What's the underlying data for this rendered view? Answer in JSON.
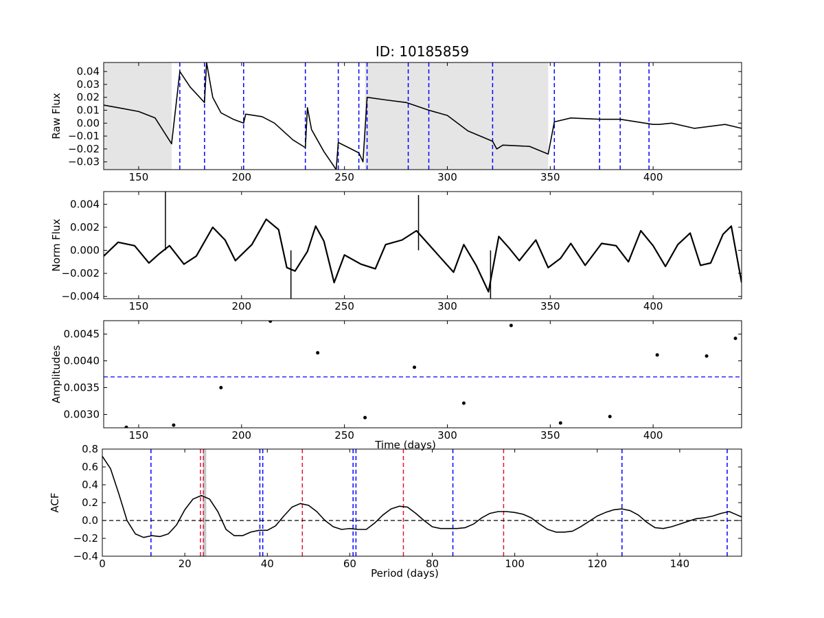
{
  "figure_title": "ID: 10185859",
  "chart_data": [
    {
      "type": "line",
      "ylabel": "Raw Flux",
      "xlabel": "",
      "xlim": [
        133,
        443
      ],
      "ylim": [
        -0.036,
        0.047
      ],
      "xticks": [
        150,
        200,
        250,
        300,
        350,
        400
      ],
      "yticks": [
        -0.03,
        -0.02,
        -0.01,
        0.0,
        0.01,
        0.02,
        0.03,
        0.04
      ],
      "ytick_labels": [
        "−0.03",
        "−0.02",
        "−0.01",
        "0.00",
        "0.01",
        "0.02",
        "0.03",
        "0.04"
      ],
      "grid": false,
      "shaded_regions": [
        [
          133,
          166
        ],
        [
          260,
          349
        ]
      ],
      "vlines": [
        170,
        182,
        201,
        231,
        247,
        257,
        261,
        281,
        291,
        322,
        352,
        374,
        384,
        398
      ],
      "series": [
        {
          "values": [
            [
              133,
              0.014
            ],
            [
              140,
              0.012
            ],
            [
              150,
              0.009
            ],
            [
              158,
              0.004
            ],
            [
              166,
              -0.016
            ],
            [
              170,
              0.04
            ],
            [
              175,
              0.028
            ],
            [
              182,
              0.016
            ],
            [
              183,
              0.047
            ],
            [
              186,
              0.02
            ],
            [
              190,
              0.008
            ],
            [
              196,
              0.003
            ],
            [
              201,
              0.0
            ],
            [
              202,
              0.007
            ],
            [
              210,
              0.005
            ],
            [
              216,
              0.0
            ],
            [
              225,
              -0.013
            ],
            [
              231,
              -0.019
            ],
            [
              232,
              0.012
            ],
            [
              234,
              -0.005
            ],
            [
              240,
              -0.022
            ],
            [
              246,
              -0.036
            ],
            [
              247,
              -0.015
            ],
            [
              252,
              -0.019
            ],
            [
              257,
              -0.023
            ],
            [
              259,
              -0.03
            ],
            [
              261,
              0.02
            ],
            [
              270,
              0.018
            ],
            [
              280,
              0.016
            ],
            [
              291,
              0.01
            ],
            [
              300,
              0.006
            ],
            [
              310,
              -0.006
            ],
            [
              322,
              -0.014
            ],
            [
              324,
              -0.02
            ],
            [
              327,
              -0.017
            ],
            [
              340,
              -0.018
            ],
            [
              349,
              -0.024
            ],
            [
              352,
              0.001
            ],
            [
              360,
              0.004
            ],
            [
              374,
              0.003
            ],
            [
              384,
              0.003
            ],
            [
              396,
              0.0
            ],
            [
              400,
              -0.001
            ],
            [
              403,
              -0.001
            ],
            [
              409,
              0.0
            ],
            [
              420,
              -0.004
            ],
            [
              435,
              -0.001
            ],
            [
              443,
              -0.004
            ]
          ]
        }
      ]
    },
    {
      "type": "line",
      "ylabel": "Norm Flux",
      "xlabel": "",
      "xlim": [
        133,
        443
      ],
      "ylim": [
        -0.0042,
        0.0051
      ],
      "xticks": [
        150,
        200,
        250,
        300,
        350,
        400
      ],
      "yticks": [
        -0.004,
        -0.002,
        0.0,
        0.002,
        0.004
      ],
      "ytick_labels": [
        "−0.004",
        "−0.002",
        "0.000",
        "0.002",
        "0.004"
      ],
      "grid": false,
      "series": [
        {
          "values": [
            [
              133,
              -0.0005
            ],
            [
              140,
              0.0007
            ],
            [
              148,
              0.0004
            ],
            [
              155,
              -0.0011
            ],
            [
              160,
              -0.0003
            ],
            [
              165,
              0.0004
            ],
            [
              172,
              -0.0012
            ],
            [
              178,
              -0.0005
            ],
            [
              186,
              0.002
            ],
            [
              192,
              0.0009
            ],
            [
              197,
              -0.0009
            ],
            [
              205,
              0.0005
            ],
            [
              212,
              0.0027
            ],
            [
              218,
              0.0018
            ],
            [
              222,
              -0.0015
            ],
            [
              226,
              -0.0018
            ],
            [
              232,
              -0.0001
            ],
            [
              236,
              0.0021
            ],
            [
              240,
              0.0008
            ],
            [
              245,
              -0.0028
            ],
            [
              250,
              -0.0004
            ],
            [
              258,
              -0.0012
            ],
            [
              265,
              -0.0016
            ],
            [
              270,
              0.0005
            ],
            [
              278,
              0.0009
            ],
            [
              285,
              0.0017
            ],
            [
              292,
              0.0003
            ],
            [
              297,
              -0.0007
            ],
            [
              303,
              -0.0019
            ],
            [
              308,
              0.0005
            ],
            [
              314,
              -0.0013
            ],
            [
              320,
              -0.0036
            ],
            [
              325,
              0.0012
            ],
            [
              330,
              0.0002
            ],
            [
              335,
              -0.0009
            ],
            [
              343,
              0.0009
            ],
            [
              349,
              -0.0015
            ],
            [
              355,
              -0.0007
            ],
            [
              360,
              0.0006
            ],
            [
              367,
              -0.0013
            ],
            [
              375,
              0.0006
            ],
            [
              382,
              0.0004
            ],
            [
              388,
              -0.001
            ],
            [
              394,
              0.0017
            ],
            [
              400,
              0.0004
            ],
            [
              406,
              -0.0014
            ],
            [
              412,
              0.0005
            ],
            [
              418,
              0.0015
            ],
            [
              423,
              -0.0013
            ],
            [
              428,
              -0.0011
            ],
            [
              434,
              0.0014
            ],
            [
              438,
              0.0021
            ],
            [
              443,
              -0.0028
            ]
          ]
        }
      ],
      "spikes": [
        {
          "x": 163,
          "y": 0.0051
        },
        {
          "x": 224,
          "y": -0.0042
        },
        {
          "x": 321,
          "y": -0.0042
        },
        {
          "x": 286,
          "y": 0.0048
        }
      ]
    },
    {
      "type": "scatter",
      "ylabel": "Amplitudes",
      "xlabel": "Time (days)",
      "xlim": [
        133,
        443
      ],
      "ylim": [
        0.00275,
        0.00475
      ],
      "xticks": [
        150,
        200,
        250,
        300,
        350,
        400
      ],
      "yticks": [
        0.003,
        0.0035,
        0.004,
        0.0045
      ],
      "ytick_labels": [
        "0.0030",
        "0.0035",
        "0.0040",
        "0.0045"
      ],
      "grid": false,
      "hline": 0.0037,
      "points": [
        [
          144,
          0.00276
        ],
        [
          167,
          0.0028
        ],
        [
          190,
          0.0035
        ],
        [
          214,
          0.00474
        ],
        [
          237,
          0.00415
        ],
        [
          260,
          0.00294
        ],
        [
          284,
          0.00388
        ],
        [
          308,
          0.00321
        ],
        [
          331,
          0.00466
        ],
        [
          355,
          0.00284
        ],
        [
          379,
          0.00296
        ],
        [
          402,
          0.00411
        ],
        [
          426,
          0.00409
        ],
        [
          440,
          0.00442
        ]
      ]
    },
    {
      "type": "line",
      "ylabel": "ACF",
      "xlabel": "Period (days)",
      "xlim": [
        0,
        155
      ],
      "ylim": [
        -0.4,
        0.8
      ],
      "xticks": [
        0,
        20,
        40,
        60,
        80,
        100,
        120,
        140
      ],
      "yticks": [
        -0.4,
        -0.2,
        0.0,
        0.2,
        0.4,
        0.6,
        0.8
      ],
      "ytick_labels": [
        "−0.4",
        "−0.2",
        "0.0",
        "0.2",
        "0.4",
        "0.6",
        "0.8"
      ],
      "grid": false,
      "hline": 0.0,
      "shaded_band": [
        24.4,
        25.2
      ],
      "blue_vlines": [
        11.8,
        38.2,
        38.9,
        60.8,
        61.5,
        85,
        126,
        151.5
      ],
      "red_vlines": [
        23.8,
        24.5,
        48.5,
        73,
        97.3
      ],
      "series": [
        {
          "values": [
            [
              0,
              0.72
            ],
            [
              2,
              0.58
            ],
            [
              4,
              0.3
            ],
            [
              6,
              0.0
            ],
            [
              8,
              -0.15
            ],
            [
              10,
              -0.19
            ],
            [
              12,
              -0.17
            ],
            [
              14,
              -0.18
            ],
            [
              16,
              -0.15
            ],
            [
              18,
              -0.05
            ],
            [
              20,
              0.12
            ],
            [
              22,
              0.24
            ],
            [
              24,
              0.28
            ],
            [
              26,
              0.24
            ],
            [
              28,
              0.1
            ],
            [
              30,
              -0.1
            ],
            [
              32,
              -0.17
            ],
            [
              34,
              -0.17
            ],
            [
              36,
              -0.13
            ],
            [
              38,
              -0.11
            ],
            [
              40,
              -0.11
            ],
            [
              42,
              -0.06
            ],
            [
              44,
              0.05
            ],
            [
              46,
              0.15
            ],
            [
              48,
              0.19
            ],
            [
              50,
              0.17
            ],
            [
              52,
              0.1
            ],
            [
              54,
              0.0
            ],
            [
              56,
              -0.07
            ],
            [
              58,
              -0.1
            ],
            [
              60,
              -0.09
            ],
            [
              62,
              -0.1
            ],
            [
              64,
              -0.1
            ],
            [
              66,
              -0.03
            ],
            [
              68,
              0.06
            ],
            [
              70,
              0.13
            ],
            [
              72,
              0.16
            ],
            [
              74,
              0.15
            ],
            [
              76,
              0.08
            ],
            [
              78,
              0.0
            ],
            [
              80,
              -0.07
            ],
            [
              82,
              -0.09
            ],
            [
              84,
              -0.09
            ],
            [
              86,
              -0.09
            ],
            [
              88,
              -0.08
            ],
            [
              90,
              -0.04
            ],
            [
              92,
              0.03
            ],
            [
              94,
              0.08
            ],
            [
              96,
              0.1
            ],
            [
              98,
              0.1
            ],
            [
              100,
              0.09
            ],
            [
              102,
              0.07
            ],
            [
              104,
              0.03
            ],
            [
              106,
              -0.04
            ],
            [
              108,
              -0.1
            ],
            [
              110,
              -0.13
            ],
            [
              112,
              -0.13
            ],
            [
              114,
              -0.12
            ],
            [
              116,
              -0.07
            ],
            [
              118,
              -0.01
            ],
            [
              120,
              0.05
            ],
            [
              122,
              0.09
            ],
            [
              124,
              0.12
            ],
            [
              126,
              0.13
            ],
            [
              128,
              0.11
            ],
            [
              130,
              0.06
            ],
            [
              132,
              -0.02
            ],
            [
              134,
              -0.08
            ],
            [
              136,
              -0.09
            ],
            [
              138,
              -0.07
            ],
            [
              140,
              -0.04
            ],
            [
              142,
              -0.01
            ],
            [
              144,
              0.02
            ],
            [
              146,
              0.03
            ],
            [
              148,
              0.05
            ],
            [
              150,
              0.08
            ],
            [
              152,
              0.1
            ],
            [
              154,
              0.06
            ],
            [
              155,
              0.04
            ]
          ]
        }
      ]
    }
  ]
}
